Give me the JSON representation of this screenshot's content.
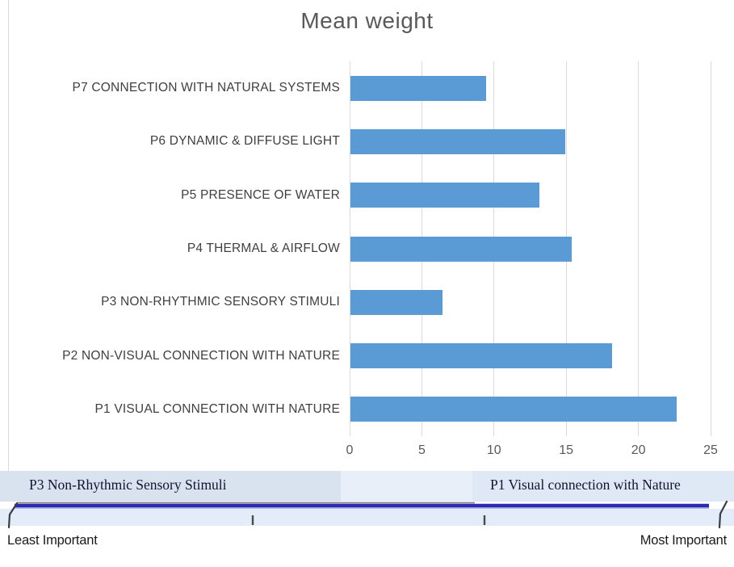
{
  "title": "Mean weight",
  "colors": {
    "bar": "#5B9BD5",
    "gridline": "#D9D9D9",
    "axis_text": "#595959",
    "category_text": "#404040",
    "title_text": "#595959",
    "band_left": "#d9e3f0",
    "band_mid": "#e9eff8",
    "band_right": "#dfe8f5",
    "strip": "#e3ecf8",
    "scale_line_navy": "#2b2bb2",
    "scale_line_navy_light": "#97a0e6",
    "scale_line_gray": "#7a7a7a",
    "hook_stroke": "#3c3c44",
    "tick_mark": "#4a4a4a"
  },
  "chart_data": {
    "type": "bar",
    "orientation": "horizontal",
    "title": "Mean weight",
    "categories": [
      "P7 CONNECTION WITH NATURAL SYSTEMS",
      "P6 DYNAMIC & DIFFUSE LIGHT",
      "P5 PRESENCE OF WATER",
      "P4 THERMAL & AIRFLOW",
      "P3 NON-RHYTHMIC SENSORY STIMULI",
      "P2 NON-VISUAL CONNECTION WITH NATURE",
      "P1 VISUAL CONNECTION WITH NATURE"
    ],
    "values": [
      9.4,
      14.9,
      13.1,
      15.3,
      6.4,
      18.1,
      22.6
    ],
    "xlabel": "",
    "ylabel": "",
    "xlim": [
      0,
      25
    ],
    "x_ticks": [
      0,
      5,
      10,
      15,
      20,
      25
    ],
    "grid": true,
    "legend": false
  },
  "scale_bar": {
    "left_label": "P3 Non-Rhythmic Sensory Stimuli",
    "right_label": "P1 Visual connection with Nature",
    "min_label": "Least Important",
    "max_label": "Most Important"
  }
}
